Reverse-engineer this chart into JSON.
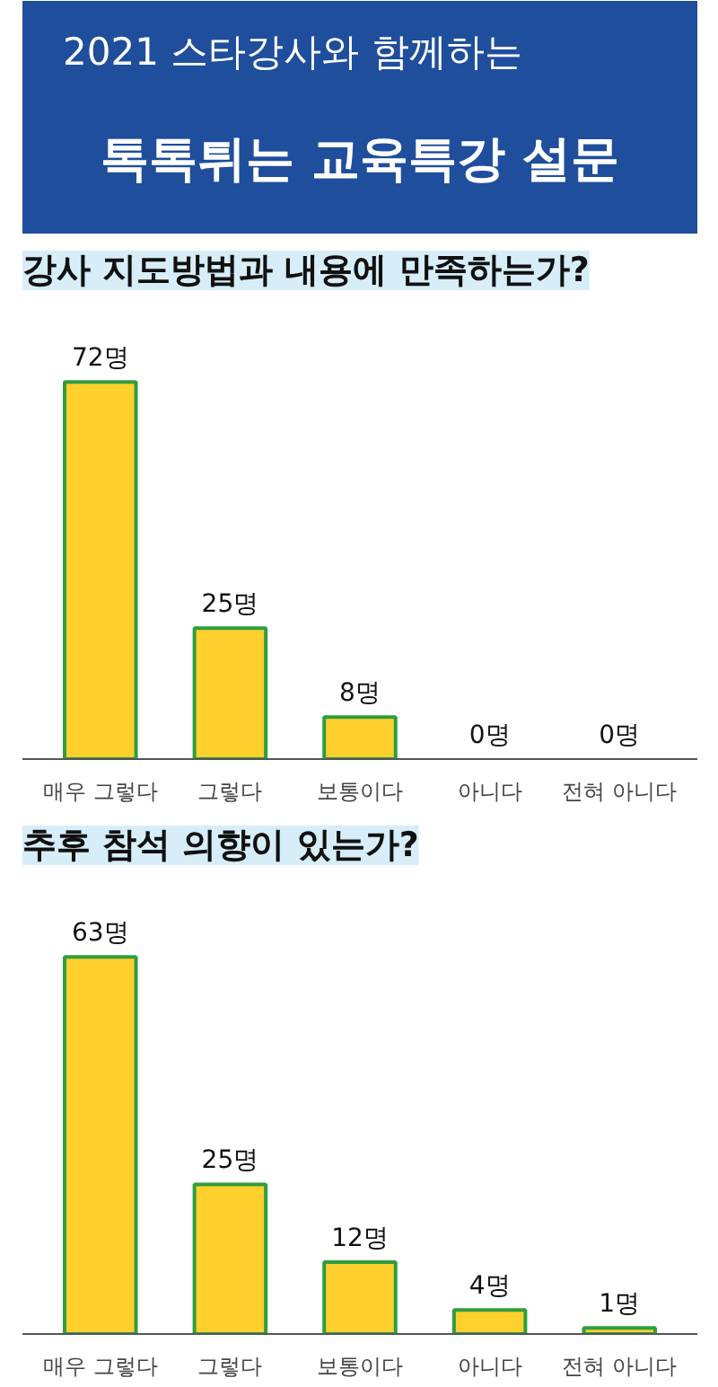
{
  "chart_data": [
    {
      "type": "other",
      "title": "2021 스타강사와 함께하는",
      "subtitle": "톡톡튀는 교육특강 설문"
    },
    {
      "type": "bar",
      "title": "강사 지도방법과 내용에 만족하는가?",
      "categories": [
        "매우 그렇다",
        "그렇다",
        "보통이다",
        "아니다",
        "전혀 아니다"
      ],
      "values": [
        72,
        25,
        8,
        0,
        0
      ],
      "value_labels": [
        "72명",
        "25명",
        "8명",
        "0명",
        "0명"
      ],
      "color": "#ffd02e"
    },
    {
      "type": "bar",
      "title": "추후 참석 의향이 있는가?",
      "categories": [
        "매우 그렇다",
        "그렇다",
        "보통이다",
        "아니다",
        "전혀 아니다"
      ],
      "values": [
        63,
        25,
        12,
        4,
        1
      ],
      "value_labels": [
        "63명",
        "25명",
        "12명",
        "4명",
        "1명"
      ],
      "color": "#ffd02e"
    }
  ]
}
